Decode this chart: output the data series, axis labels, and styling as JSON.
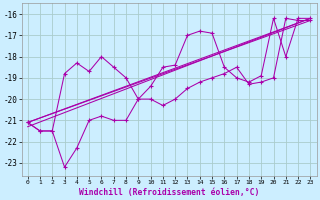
{
  "title": "",
  "xlabel": "Windchill (Refroidissement éolien,°C)",
  "ylabel": "",
  "background_color": "#cceeff",
  "grid_color": "#aacccc",
  "line_color": "#aa00aa",
  "xlim": [
    -0.5,
    23.5
  ],
  "ylim": [
    -23.6,
    -15.5
  ],
  "yticks": [
    -23,
    -22,
    -21,
    -20,
    -19,
    -18,
    -17,
    -16
  ],
  "xticks": [
    0,
    1,
    2,
    3,
    4,
    5,
    6,
    7,
    8,
    9,
    10,
    11,
    12,
    13,
    14,
    15,
    16,
    17,
    18,
    19,
    20,
    21,
    22,
    23
  ],
  "series": [
    {
      "x": [
        0,
        1,
        2,
        3,
        4,
        5,
        6,
        7,
        8,
        9,
        10,
        11,
        12,
        13,
        14,
        15,
        16,
        17,
        18,
        19,
        20,
        21,
        22,
        23
      ],
      "y": [
        -21.1,
        -21.5,
        -21.5,
        -18.8,
        -18.3,
        -18.7,
        -18.0,
        -18.5,
        -19.0,
        -20.0,
        -19.4,
        -18.5,
        -18.4,
        -17.0,
        -16.8,
        -16.9,
        -18.5,
        -19.0,
        -19.2,
        -18.9,
        -16.2,
        -18.0,
        -16.2,
        -16.2
      ]
    },
    {
      "x": [
        0,
        1,
        2,
        3,
        4,
        5,
        6,
        7,
        8,
        9,
        10,
        11,
        12,
        13,
        14,
        15,
        16,
        17,
        18,
        19,
        20,
        21,
        22,
        23
      ],
      "y": [
        -21.1,
        -21.5,
        -21.5,
        -23.2,
        -22.3,
        -21.0,
        -20.8,
        -21.0,
        -21.0,
        -20.0,
        -20.0,
        -20.3,
        -20.0,
        -19.5,
        -19.2,
        -19.0,
        -18.8,
        -18.5,
        -19.3,
        -19.2,
        -19.0,
        -16.2,
        -16.3,
        -16.3
      ]
    },
    {
      "x": [
        0,
        23
      ],
      "y": [
        -21.1,
        -16.2
      ]
    },
    {
      "x": [
        0,
        23
      ],
      "y": [
        -21.1,
        -16.3
      ]
    },
    {
      "x": [
        0,
        23
      ],
      "y": [
        -21.3,
        -16.2
      ]
    }
  ]
}
